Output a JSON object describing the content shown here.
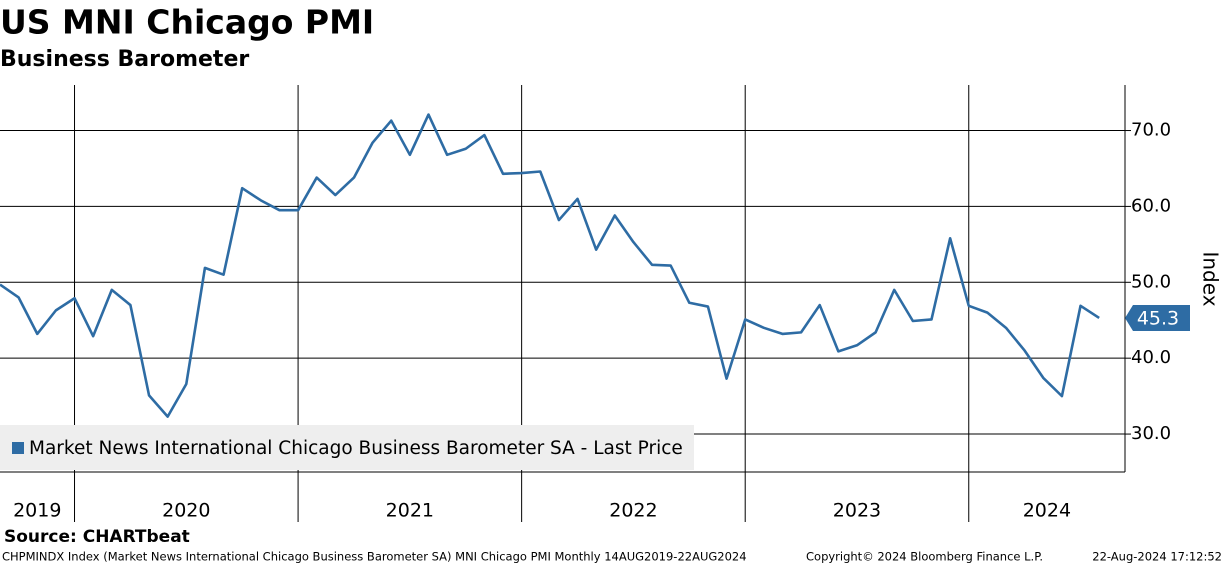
{
  "chart_data": {
    "type": "line",
    "title": "US MNI Chicago PMI",
    "subtitle": "Business Barometer",
    "y_axis_label": "Index",
    "x_axis_labels": [
      "2019",
      "2020",
      "2021",
      "2022",
      "2023",
      "2024"
    ],
    "series": [
      {
        "name": "Market News International Chicago Business Barometer SA - Last Price",
        "color": "#2e6ca4",
        "values": [
          49.7,
          48.0,
          43.2,
          46.3,
          47.9,
          42.9,
          49.0,
          47.0,
          35.1,
          32.3,
          36.6,
          51.9,
          51.0,
          62.4,
          60.8,
          59.5,
          59.5,
          63.8,
          61.5,
          63.8,
          68.4,
          71.3,
          66.8,
          72.1,
          66.8,
          67.6,
          69.4,
          64.3,
          64.4,
          64.6,
          58.2,
          61.0,
          54.3,
          58.8,
          55.3,
          52.3,
          52.2,
          47.3,
          46.8,
          37.3,
          45.1,
          44.0,
          43.2,
          43.4,
          47.0,
          40.9,
          41.7,
          43.4,
          49.0,
          44.9,
          45.1,
          55.8,
          46.9,
          46.0,
          44.0,
          41.0,
          37.4,
          35.0,
          46.9,
          45.3
        ]
      }
    ],
    "ylim": [
      25,
      76
    ],
    "yticks": [
      {
        "value": 30,
        "label": "30.0"
      },
      {
        "value": 40,
        "label": "40.0"
      },
      {
        "value": 50,
        "label": "50.0"
      },
      {
        "value": 60,
        "label": "60.0"
      },
      {
        "value": 70,
        "label": "70.0"
      }
    ],
    "grid": true,
    "source": "Source: CHARTbeat",
    "footer": {
      "description": "CHPMINDX Index (Market News International Chicago Business Barometer SA) MNI Chicago PMI  Monthly 14AUG2019-22AUG2024",
      "copyright": "Copyright© 2024 Bloomberg Finance L.P.",
      "timestamp": "22-Aug-2024 17:12:52"
    }
  }
}
